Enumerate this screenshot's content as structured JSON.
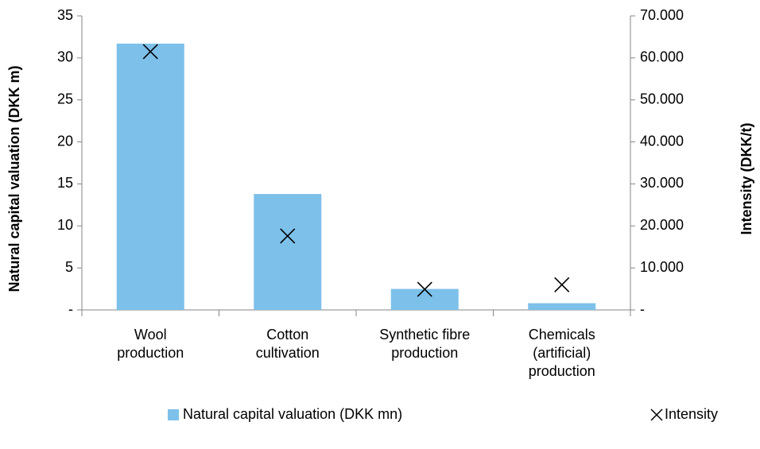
{
  "chart_data": {
    "type": "bar",
    "categories": [
      "Wool\nproduction",
      "Cotton\ncultivation",
      "Synthetic fibre\nproduction",
      "Chemicals\n(artificial)\nproduction"
    ],
    "series": [
      {
        "name": "Natural capital valuation (DKK mn)",
        "type": "bar",
        "color": "#7dc0ea",
        "values": [
          31.7,
          13.8,
          2.5,
          0.8
        ]
      },
      {
        "name": "Intensity",
        "type": "marker",
        "axis": "y2",
        "color": "#000000",
        "values": [
          61500,
          17600,
          4900,
          6000
        ]
      }
    ],
    "ylabel": "Natural capital valuation (DKK m)",
    "y2label": "Intensity (DKK/t)",
    "ylim": [
      0,
      35
    ],
    "yticks": [
      {
        "value": 0,
        "label": "-"
      },
      5,
      10,
      15,
      20,
      25,
      30,
      35
    ],
    "y2lim": [
      0,
      70000
    ],
    "y2ticks": [
      {
        "value": 0,
        "label": "-"
      },
      {
        "value": 10000,
        "label": "10.000"
      },
      {
        "value": 20000,
        "label": "20.000"
      },
      {
        "value": 30000,
        "label": "30.000"
      },
      {
        "value": 40000,
        "label": "40.000"
      },
      {
        "value": 50000,
        "label": "50.000"
      },
      {
        "value": 60000,
        "label": "60.000"
      },
      {
        "value": 70000,
        "label": "70.000"
      }
    ],
    "grid": false,
    "legend": "bottom"
  }
}
